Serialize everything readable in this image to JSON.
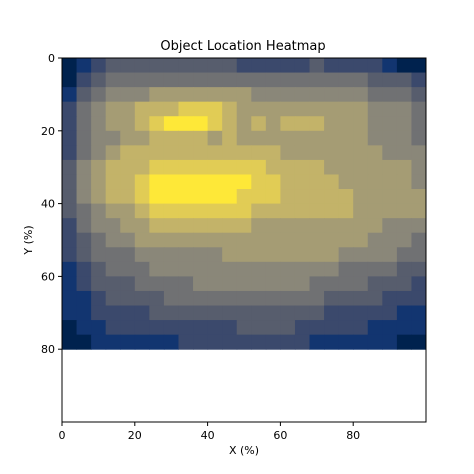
{
  "chart_data": {
    "type": "heatmap",
    "title": "Object Location Heatmap",
    "xlabel": "X (%)",
    "ylabel": "Y (%)",
    "xlim": [
      0,
      100
    ],
    "ylim": [
      100,
      0
    ],
    "y_inverted": true,
    "xticks": [
      0,
      20,
      40,
      60,
      80
    ],
    "yticks": [
      0,
      20,
      40,
      60,
      80
    ],
    "colormap": "cividis",
    "colormap_stops": [
      "#00224e",
      "#123570",
      "#3b496c",
      "#575d6d",
      "#707173",
      "#8a8779",
      "#a59c74",
      "#c3b369",
      "#e1cc55",
      "#fee838"
    ],
    "grid": false,
    "legend": "none",
    "cell_size": 4,
    "density_rows": [
      "0123333333332222232222100000",
      "0234444444444444444443332100",
      "1345556666666555555554443211",
      "2456677788876666666665554322",
      "2456678999876767776665554321",
      "2455667777676666666665554421",
      "2456777777777776666666555442",
      "3567778888888877776666665553",
      "3567789999999887777666665553",
      "3567789999998887777766666553",
      "3456678888888777777766666543",
      "2455667777777666666666555432",
      "2345566666666666666665554332",
      "2344455555566666666555544321",
      "1234445555555555555444433211",
      "1233344445555555544443332211",
      "1123333444444444443333222110",
      "1122223333333333332222211100",
      "0112222222223333222221111000",
      "0011111122222222211111100000"
    ]
  }
}
